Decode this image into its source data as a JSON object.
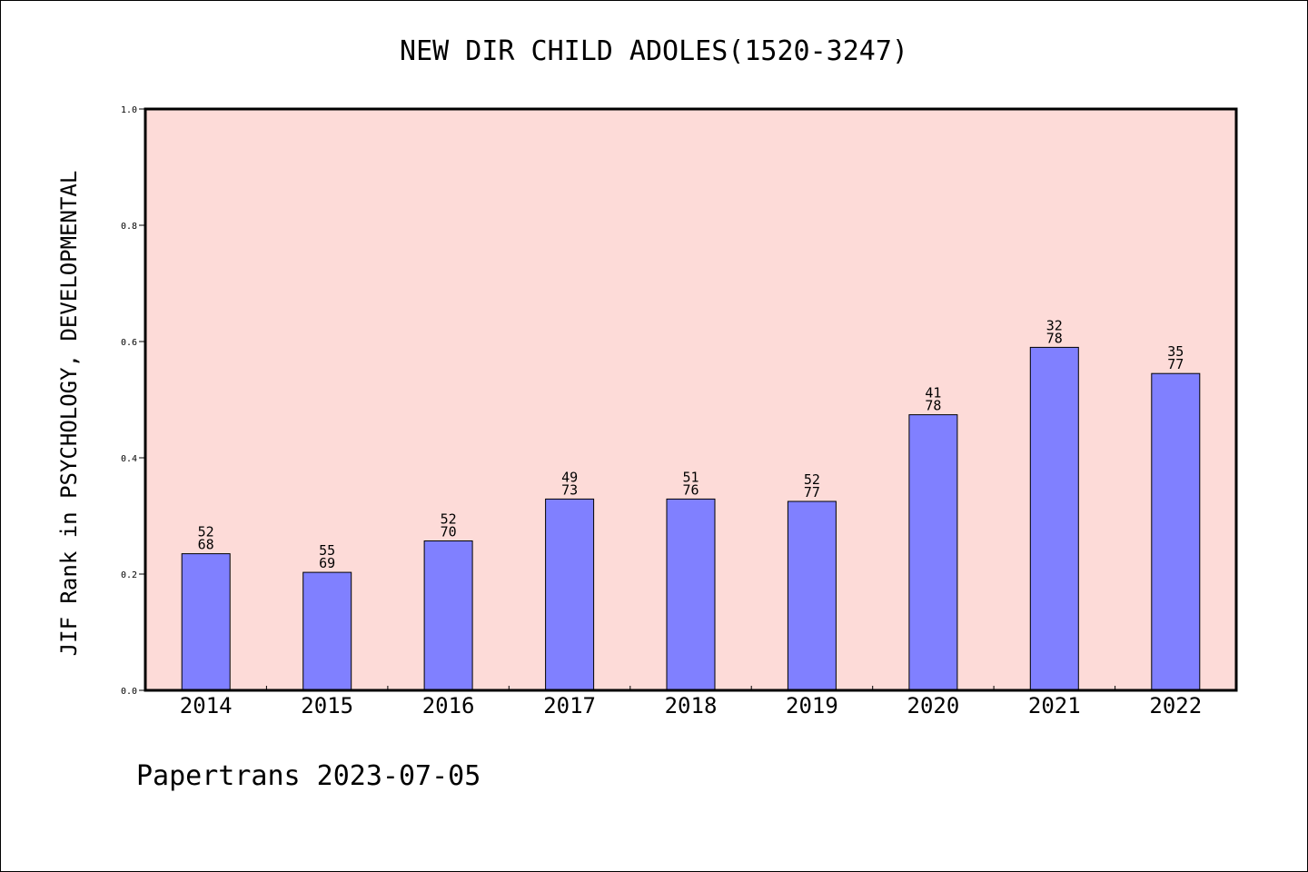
{
  "chart_data": {
    "type": "bar",
    "title": "NEW DIR CHILD ADOLES(1520-3247)",
    "xlabel": "",
    "ylabel": "JIF Rank in PSYCHOLOGY, DEVELOPMENTAL",
    "ylim": [
      0.0,
      1.0
    ],
    "yticks": [
      "0.0",
      "0.2",
      "0.4",
      "0.6",
      "0.8",
      "1.0"
    ],
    "categories": [
      "2014",
      "2015",
      "2016",
      "2017",
      "2018",
      "2019",
      "2020",
      "2021",
      "2022"
    ],
    "values": [
      0.235,
      0.203,
      0.257,
      0.329,
      0.329,
      0.325,
      0.474,
      0.59,
      0.545
    ],
    "rank_labels": [
      {
        "rank": "52",
        "total": "68"
      },
      {
        "rank": "55",
        "total": "69"
      },
      {
        "rank": "52",
        "total": "70"
      },
      {
        "rank": "49",
        "total": "73"
      },
      {
        "rank": "51",
        "total": "76"
      },
      {
        "rank": "52",
        "total": "77"
      },
      {
        "rank": "41",
        "total": "78"
      },
      {
        "rank": "32",
        "total": "78"
      },
      {
        "rank": "35",
        "total": "77"
      }
    ],
    "grid": false,
    "colors": {
      "plot_background": "#fddbd8",
      "bar_fill": "#8080ff",
      "bar_edge": "#000000"
    }
  },
  "footer": {
    "text": "Papertrans 2023-07-05"
  }
}
